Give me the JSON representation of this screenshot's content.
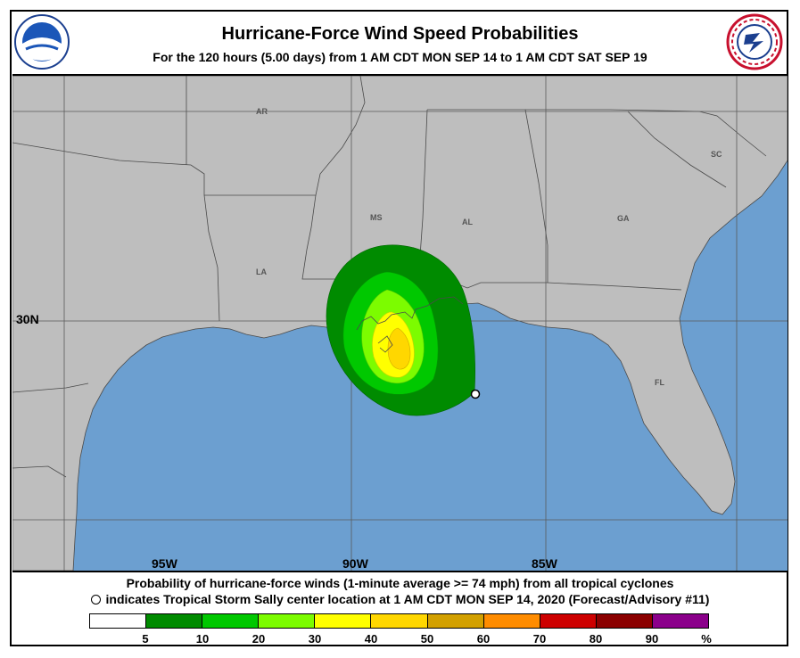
{
  "header": {
    "title": "Hurricane-Force Wind Speed Probabilities",
    "subtitle": "For the 120 hours (5.00 days) from 1 AM CDT MON SEP 14 to 1 AM CDT SAT SEP 19",
    "left_logo_icon": "noaa-logo-icon",
    "right_logo_icon": "nws-logo-icon"
  },
  "map": {
    "lat_labels": [
      "30N"
    ],
    "lon_labels": [
      "95W",
      "90W",
      "85W"
    ],
    "state_labels": [
      "AR",
      "MS",
      "AL",
      "GA",
      "SC",
      "LA",
      "FL"
    ],
    "land_color": "#bebebe",
    "water_color": "#6c9fd0",
    "storm_marker_icon": "open-circle-icon"
  },
  "footer": {
    "line1": "Probability of hurricane-force winds (1-minute average >= 74 mph) from all tropical cyclones",
    "line2": "indicates Tropical Storm Sally center location at 1 AM CDT MON SEP 14, 2020 (Forecast/Advisory #11)"
  },
  "legend": {
    "ticks": [
      "5",
      "10",
      "20",
      "30",
      "40",
      "50",
      "60",
      "70",
      "80",
      "90",
      "%"
    ],
    "colors": [
      "#ffffff",
      "#008b00",
      "#00c800",
      "#7cfc00",
      "#ffff00",
      "#ffd700",
      "#d2a000",
      "#ff8c00",
      "#cd0000",
      "#8b0000",
      "#8b008b"
    ]
  }
}
